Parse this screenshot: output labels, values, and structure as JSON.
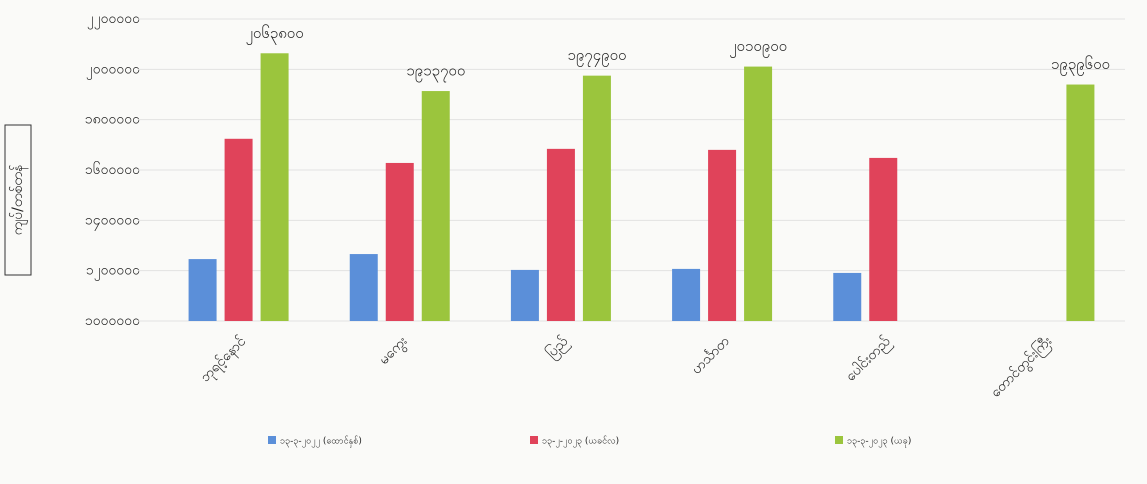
{
  "chart_data": {
    "type": "bar",
    "y_label": "ကျပ်/တစ်တန်",
    "categories": [
      "ဘုရင့်နောင်",
      "မကွေး",
      "ပြည်",
      "ဟင်္သာတ",
      "ပေါင်းတည်",
      "တောင်တွင်းကြီး"
    ],
    "series": [
      {
        "name": "၁၃-၃-၂၀၂၂ (ထောင်နှစ်)",
        "color": "#5b8fd9",
        "values": [
          1246000,
          1266000,
          1203000,
          1207000,
          1191000,
          null
        ]
      },
      {
        "name": "၁၃-၂-၂၀၂၃ (ယခင်လ)",
        "color": "#e0435a",
        "values": [
          1724000,
          1628000,
          1684000,
          1680000,
          1648000,
          null
        ]
      },
      {
        "name": "၁၃-၃-၂၀၂၃ (ယခု)",
        "color": "#9bc53d",
        "values": [
          2063800,
          1913700,
          1974900,
          2010900,
          null,
          1939600
        ],
        "value_labels": [
          "၂၀၆၃၈၀၀",
          "၁၉၁၃၇၀၀",
          "၁၉၇၄၉၀၀",
          "၂၀၁၀၉၀၀",
          null,
          "၁၉၃၉၆၀၀"
        ]
      }
    ],
    "ylim": [
      1000000,
      2200000
    ],
    "yticks": [
      {
        "value": 1000000,
        "label": "၁၀၀၀၀၀၀"
      },
      {
        "value": 1200000,
        "label": "၁၂၀၀၀၀၀"
      },
      {
        "value": 1400000,
        "label": "၁၄၀၀၀၀၀"
      },
      {
        "value": 1600000,
        "label": "၁၆၀၀၀၀၀"
      },
      {
        "value": 1800000,
        "label": "၁၈၀၀၀၀၀"
      },
      {
        "value": 2000000,
        "label": "၂၀၀၀၀၀၀"
      },
      {
        "value": 2200000,
        "label": "၂၂၀၀၀၀၀"
      }
    ],
    "grid": true
  }
}
